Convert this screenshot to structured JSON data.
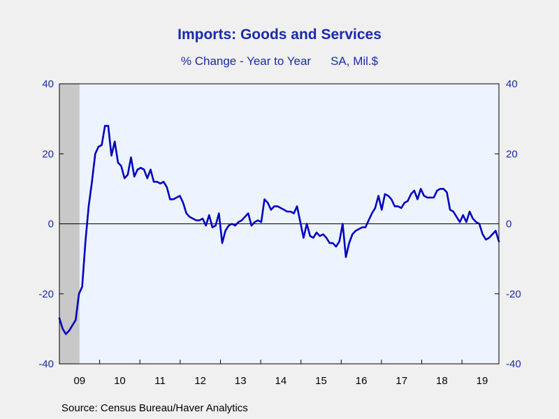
{
  "chart_data": {
    "type": "line",
    "title": "Imports: Goods and Services",
    "subtitle_left": "% Change - Year to Year",
    "subtitle_right": "SA, Mil.$",
    "source": "Source:  Census Bureau/Haver Analytics",
    "ylim": [
      -40,
      40
    ],
    "y_ticks": [
      -40,
      -20,
      0,
      20,
      40
    ],
    "x_range": [
      2009.0,
      2019.917
    ],
    "x_tick_labels": [
      "09",
      "10",
      "11",
      "12",
      "13",
      "14",
      "15",
      "16",
      "17",
      "18",
      "19"
    ],
    "recession_shading": [
      2009.0,
      2009.5
    ],
    "zero_line": true,
    "colors": {
      "line": "#0000c0",
      "text": "#1a2aa8",
      "plot_bg": "#eef4ff",
      "page_bg": "#f0f0f0",
      "recession": "#c8c8c8"
    },
    "series": [
      {
        "values": [
          -27,
          -30,
          -31.5,
          -30.5,
          -29,
          -27.5,
          -20,
          -18,
          -5,
          5,
          12,
          20,
          22,
          22.5,
          28,
          28,
          19.5,
          23.5,
          17.5,
          16.5,
          13,
          14,
          19,
          13.5,
          15.5,
          16,
          15.5,
          13,
          15.5,
          12,
          12,
          11.5,
          12,
          10.5,
          7,
          7,
          7.5,
          8,
          6,
          3,
          2,
          1.5,
          1,
          1,
          1.5,
          -0.5,
          2.5,
          -1,
          -0.5,
          3,
          -5.5,
          -2,
          -0.5,
          0,
          -0.5,
          0.5,
          1,
          2,
          3,
          -0.5,
          0.5,
          1,
          0.5,
          7,
          6,
          4,
          5,
          5,
          4.5,
          4,
          3.5,
          3.5,
          3,
          5,
          0.5,
          -4,
          0,
          -3.5,
          -4,
          -2.5,
          -3.5,
          -3,
          -4,
          -5.5,
          -5.5,
          -6.5,
          -5,
          0,
          -9.5,
          -5.5,
          -3,
          -2,
          -1.5,
          -1,
          -1,
          1,
          3,
          4.5,
          8,
          4,
          8.5,
          8,
          7,
          5,
          5,
          4.5,
          6,
          6.5,
          8.5,
          9.5,
          7,
          10,
          8,
          7.5,
          7.5,
          7.5,
          9.5,
          10,
          10,
          9,
          4,
          3.5,
          2,
          0.5,
          2.5,
          0.5,
          3.5,
          1.5,
          0.5,
          0,
          -3,
          -4.5,
          -4,
          -3,
          -2,
          -5
        ]
      }
    ]
  }
}
